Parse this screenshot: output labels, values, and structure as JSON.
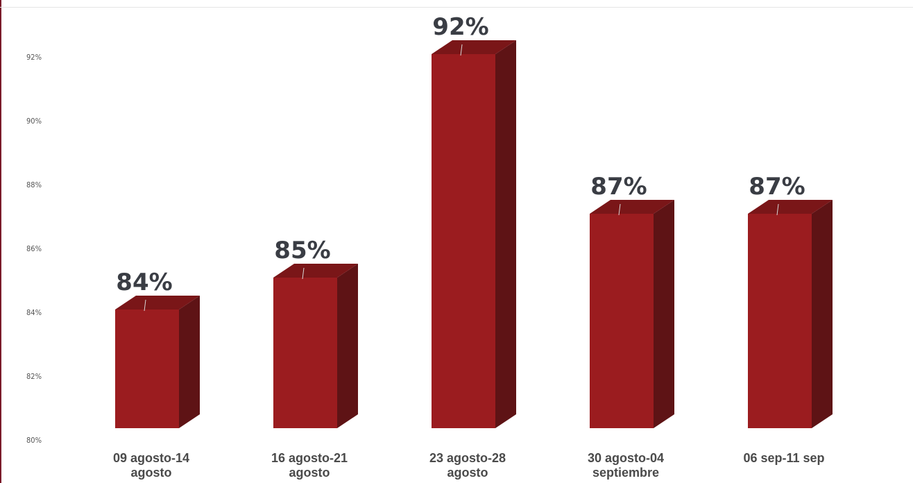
{
  "colors": {
    "bar_front": "#9b1c1f",
    "bar_side": "#5e1315",
    "bar_top": "#7a1618",
    "frame_left": "#7a1a2a",
    "value_text": "#3a3d44",
    "leader_line": "#d9d9d9"
  },
  "chart_data": {
    "type": "bar",
    "title": "",
    "xlabel": "",
    "ylabel": "",
    "ylim": [
      80,
      92
    ],
    "yticks": [
      "80%",
      "82%",
      "84%",
      "86%",
      "88%",
      "90%",
      "92%"
    ],
    "ytick_values": [
      80,
      82,
      84,
      86,
      88,
      90,
      92
    ],
    "categories": [
      [
        "09 agosto-14",
        "agosto"
      ],
      [
        "16 agosto-21",
        "agosto"
      ],
      [
        "23 agosto-28",
        "agosto"
      ],
      [
        "30 agosto-04",
        "septiembre"
      ],
      [
        "06 sep-11 sep"
      ]
    ],
    "values": [
      84,
      85,
      92,
      87,
      87
    ],
    "value_labels": [
      "84%",
      "85%",
      "92%",
      "87%",
      "87%"
    ],
    "style": "3d-column",
    "grid": false,
    "legend": "none"
  }
}
